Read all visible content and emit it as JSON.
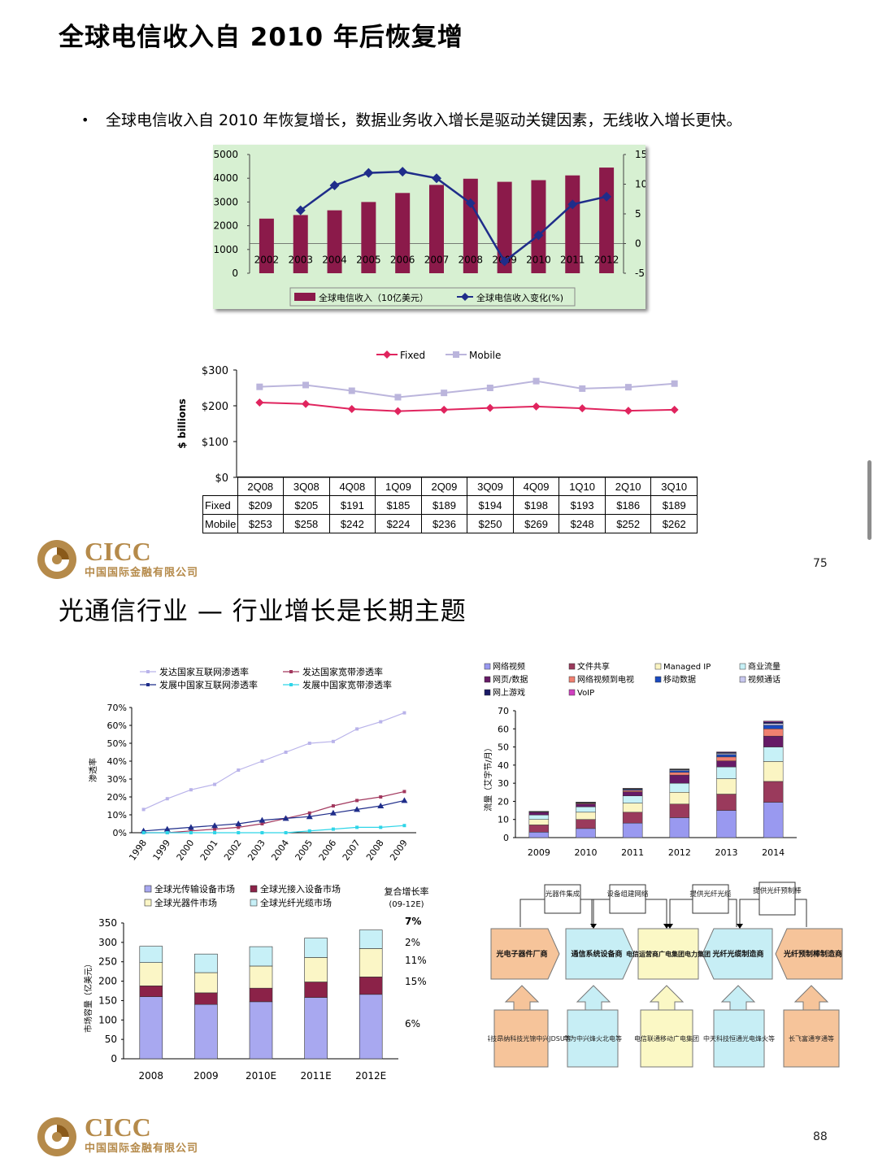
{
  "page1": {
    "title": "全球电信收入自 2010 年后恢复增",
    "bullet": "全球电信收入自 2010 年恢复增长，数据业务收入增长是驱动关键因素，无线收入增长更快。",
    "page_number": "75",
    "logo": {
      "name": "CICC",
      "subtitle": "中国国际金融有限公司"
    }
  },
  "page2": {
    "title": "光通信行业 — 行业增长是长期主题",
    "page_number": "88",
    "logo": {
      "name": "CICC",
      "subtitle": "中国国际金融有限公司"
    }
  },
  "colors": {
    "maroon": "#8b1a4a",
    "navy": "#1f2d8a",
    "green_bg": "#d7f0d2",
    "logo_gold": "#b58a4a",
    "flow_orange": "#f6c49a",
    "flow_blue": "#c7eef5",
    "flow_yellow": "#fbf8c5"
  },
  "chart_data": [
    {
      "id": "global-telecom-revenue",
      "type": "bar",
      "categories": [
        "2002",
        "2003",
        "2004",
        "2005",
        "2006",
        "2007",
        "2008",
        "2009",
        "2010",
        "2011",
        "2012"
      ],
      "series": [
        {
          "name": "全球电信收入（10亿美元）",
          "values": [
            2300,
            2450,
            2650,
            3000,
            3380,
            3720,
            3980,
            3850,
            3920,
            4120,
            4450
          ],
          "color": "#8b1a4a"
        },
        {
          "name": "全球电信收入变化(%)",
          "type": "line",
          "axis": "right",
          "values": [
            null,
            5.6,
            9.8,
            11.9,
            12.1,
            11.0,
            6.8,
            -3.0,
            1.4,
            6.6,
            7.9
          ],
          "color": "#1f2d8a"
        }
      ],
      "ylim": [
        0,
        5000
      ],
      "yticks": [
        0,
        1000,
        2000,
        3000,
        4000,
        5000
      ],
      "y2lim": [
        -5,
        15
      ],
      "y2ticks": [
        -5,
        0,
        5,
        10,
        15
      ],
      "background": "#d7f0d2",
      "legend": "bottom"
    },
    {
      "id": "fixed-vs-mobile",
      "type": "line",
      "categories": [
        "2Q08",
        "3Q08",
        "4Q08",
        "1Q09",
        "2Q09",
        "3Q09",
        "4Q09",
        "1Q10",
        "2Q10",
        "3Q10"
      ],
      "series": [
        {
          "name": "Fixed",
          "values": [
            209,
            205,
            191,
            185,
            189,
            194,
            198,
            193,
            186,
            189
          ],
          "labels": [
            "$209",
            "$205",
            "$191",
            "$185",
            "$189",
            "$194",
            "$198",
            "$193",
            "$186",
            "$189"
          ],
          "color": "#e0245e"
        },
        {
          "name": "Mobile",
          "values": [
            253,
            258,
            242,
            224,
            236,
            250,
            269,
            248,
            252,
            262
          ],
          "labels": [
            "$253",
            "$258",
            "$242",
            "$224",
            "$236",
            "$250",
            "$269",
            "$248",
            "$252",
            "$262"
          ],
          "color": "#bbb5dc"
        }
      ],
      "ylabel": "$ billions",
      "yticks": [
        "$0",
        "$100",
        "$200",
        "$300"
      ],
      "ylim": [
        0,
        300
      ],
      "legend": "top",
      "table_row_labels": [
        "Fixed",
        "Mobile"
      ]
    },
    {
      "id": "internet-penetration",
      "type": "line",
      "categories": [
        "1998",
        "1999",
        "2000",
        "2001",
        "2002",
        "2003",
        "2004",
        "2005",
        "2006",
        "2007",
        "2008",
        "2009"
      ],
      "series": [
        {
          "name": "发达国家互联网渗透率",
          "values": [
            13,
            19,
            24,
            27,
            35,
            40,
            45,
            50,
            51,
            58,
            62,
            67
          ],
          "color": "#b9b3ea"
        },
        {
          "name": "发达国家宽带渗透率",
          "values": [
            0,
            0,
            1,
            2,
            3,
            5,
            8,
            11,
            15,
            18,
            20,
            23
          ],
          "color": "#a2385e"
        },
        {
          "name": "发展中国家互联网渗透率",
          "values": [
            1,
            2,
            3,
            4,
            5,
            7,
            8,
            9,
            11,
            13,
            15,
            18
          ],
          "color": "#1f2d8a"
        },
        {
          "name": "发展中国家宽带渗透率",
          "values": [
            0,
            0,
            0,
            0,
            0,
            0,
            0,
            1,
            2,
            3,
            3,
            4
          ],
          "color": "#2fd5e8"
        }
      ],
      "ylabel": "渗透率",
      "yticks": [
        "0%",
        "10%",
        "20%",
        "30%",
        "40%",
        "50%",
        "60%",
        "70%"
      ],
      "ylim": [
        0,
        70
      ],
      "legend": "top"
    },
    {
      "id": "traffic-by-application",
      "type": "bar",
      "stacked": true,
      "categories": [
        "2009",
        "2010",
        "2011",
        "2012",
        "2013",
        "2014"
      ],
      "series": [
        {
          "name": "网络视频",
          "values": [
            3,
            5,
            8,
            11,
            15,
            19.5
          ],
          "color": "#9999f0"
        },
        {
          "name": "文件共享",
          "values": [
            4,
            5,
            6,
            7.5,
            9,
            11.5
          ],
          "color": "#9a3a5c"
        },
        {
          "name": "Managed IP",
          "values": [
            3,
            4,
            5,
            6.5,
            8.5,
            11
          ],
          "color": "#fbf5c3"
        },
        {
          "name": "商业流量",
          "values": [
            2.5,
            3,
            4,
            5,
            6.5,
            8
          ],
          "color": "#c7f1f7"
        },
        {
          "name": "网页/数据",
          "values": [
            1.5,
            1.6,
            2.3,
            4.5,
            3.3,
            6
          ],
          "color": "#661a66"
        },
        {
          "name": "网络视频到电视",
          "values": [
            0.2,
            0.4,
            0.8,
            1.5,
            2.2,
            4
          ],
          "color": "#f08070"
        },
        {
          "name": "移动数据",
          "values": [
            0.1,
            0.2,
            0.5,
            0.9,
            1.3,
            2
          ],
          "color": "#1a4ac0"
        },
        {
          "name": "视频通话",
          "values": [
            0.1,
            0.2,
            0.3,
            0.5,
            0.7,
            1
          ],
          "color": "#c8c8ef"
        },
        {
          "name": "网上游戏",
          "values": [
            0.05,
            0.1,
            0.2,
            0.3,
            0.5,
            0.8
          ],
          "color": "#1a1a66"
        },
        {
          "name": "VoIP",
          "values": [
            0.05,
            0.1,
            0.1,
            0.2,
            0.3,
            0.5
          ],
          "color": "#d040c0"
        }
      ],
      "ylabel": "流量（艾字节/月）",
      "yticks": [
        "0",
        "10",
        "20",
        "30",
        "40",
        "50",
        "60",
        "70"
      ],
      "ylim": [
        0,
        70
      ],
      "legend": "top"
    },
    {
      "id": "optical-market",
      "type": "bar",
      "stacked": true,
      "categories": [
        "2008",
        "2009",
        "2010E",
        "2011E",
        "2012E"
      ],
      "series": [
        {
          "name": "全球光传输设备市场",
          "values": [
            160,
            140,
            147,
            158,
            166
          ],
          "color": "#a8a8f0"
        },
        {
          "name": "全球光接入设备市场",
          "values": [
            28,
            30,
            35,
            40,
            45
          ],
          "color": "#8b2248"
        },
        {
          "name": "全球光器件市场",
          "values": [
            60,
            52,
            57,
            63,
            73
          ],
          "color": "#fbf6c6"
        },
        {
          "name": "全球光纤光缆市场",
          "values": [
            42,
            48,
            50,
            50,
            48
          ],
          "color": "#c7f0f7"
        }
      ],
      "cagr_header": "复合增长率",
      "cagr_period": "(09-12E)",
      "cagr": [
        "7%",
        "2%",
        "11%",
        "15%",
        "6%"
      ],
      "ylabel": "市场容量（亿美元）",
      "yticks": [
        "0",
        "50",
        "100",
        "150",
        "200",
        "250",
        "300",
        "350"
      ],
      "ylim": [
        0,
        350
      ],
      "legend": "top"
    }
  ],
  "flow": {
    "stages": [
      "光电子器件厂商",
      "通信系统设备商",
      "电信运营商广电集团电力集团",
      "光纤光缆制造商",
      "光纤预制棒制造商"
    ],
    "flows_top": [
      "光器件集成",
      "设备组建网络",
      "提供光纤光缆",
      "提供光纤预制棒"
    ],
    "companies": [
      "光迅科技昂纳科技光锦中兴JDSU等",
      "华为中兴烽火北电等",
      "电信联通移动广电集团",
      "中天科技恒通光电烽火等",
      "长飞富通亨通等"
    ]
  }
}
